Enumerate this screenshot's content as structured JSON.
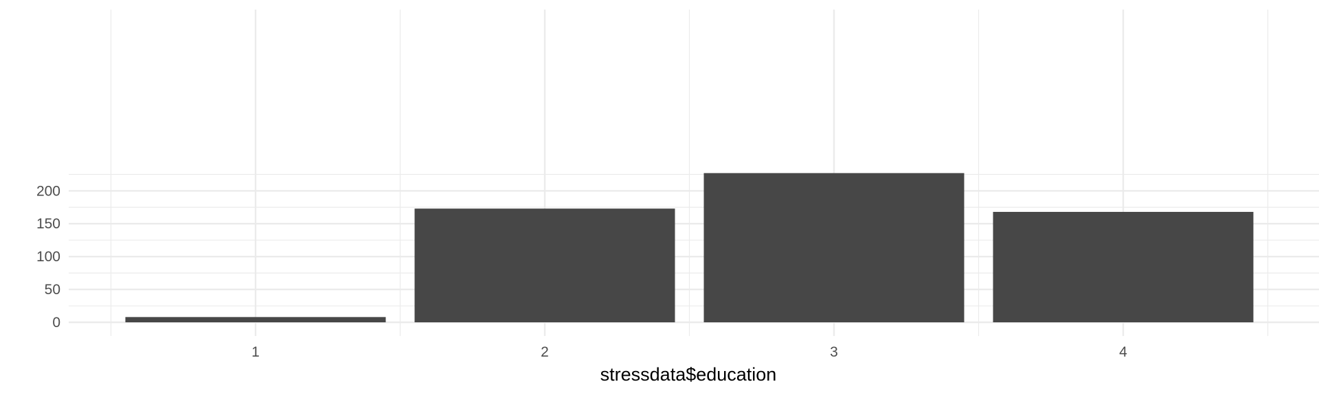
{
  "chart_data": {
    "type": "bar",
    "categories": [
      "1",
      "2",
      "3",
      "4"
    ],
    "values": [
      8,
      173,
      227,
      168
    ],
    "title": "",
    "xlabel": "stressdata$education",
    "ylabel": "",
    "ylim": [
      0,
      227
    ],
    "yticks": [
      0,
      50,
      100,
      150,
      200
    ],
    "grid": true,
    "legend": "none",
    "bar_color": "#474747",
    "grid_color": "#ebebeb"
  }
}
